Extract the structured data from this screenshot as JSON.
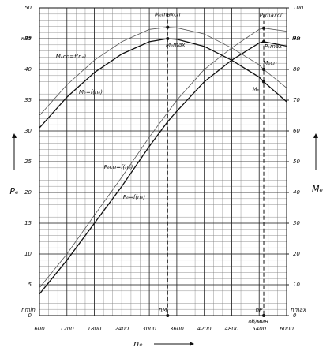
{
  "chart_data": {
    "type": "line",
    "x": [
      600,
      1200,
      1800,
      2400,
      3000,
      3400,
      3600,
      4200,
      4800,
      5400,
      5500,
      6000
    ],
    "xlim": [
      600,
      6000
    ],
    "xticks": [
      600,
      1200,
      1800,
      2400,
      3000,
      3600,
      4200,
      4800,
      5400,
      6000
    ],
    "ylim": [
      0,
      50
    ],
    "yticks": [
      0,
      5,
      10,
      15,
      20,
      25,
      30,
      35,
      40,
      45,
      50
    ],
    "y2lim": [
      0,
      100
    ],
    "y2ticks": [
      0,
      10,
      20,
      30,
      40,
      50,
      60,
      70,
      80,
      90,
      100
    ],
    "grid": true,
    "grid_minor": {
      "x": 200,
      "y": 1
    },
    "ylabel": "Pₑ",
    "y2label": "Mₑ",
    "xlabel": "nₑ",
    "yunit": "кВт",
    "y2unit": "Нм",
    "xunit": "об/мин",
    "x_end_labels": [
      "nmin",
      "nmax"
    ],
    "series": [
      {
        "name": "Pₑсп=f(nₑ)",
        "color": "#555",
        "width": 0.8,
        "values": [
          4.5,
          10,
          16.3,
          22.5,
          29,
          33,
          35,
          40,
          43.5,
          46.5,
          46.7,
          46.2
        ]
      },
      {
        "name": "Pₑ=f(nₑ)",
        "color": "#111",
        "width": 1.3,
        "values": [
          3.5,
          9,
          15,
          21,
          27.5,
          31.5,
          33.2,
          38,
          41.5,
          44.3,
          44.5,
          43.8
        ]
      },
      {
        "name": "Mₑсп=f(nₑ)",
        "color": "#555",
        "width": 0.8,
        "axis": "y2",
        "values": [
          65,
          75,
          83,
          89,
          93,
          93.7,
          93.5,
          91.5,
          87,
          81.5,
          80,
          74
        ]
      },
      {
        "name": "Mₑ=f(nₑ)",
        "color": "#111",
        "width": 1.3,
        "axis": "y2",
        "values": [
          61,
          71,
          79,
          85,
          89,
          90,
          89.8,
          87.5,
          83,
          77.5,
          76,
          69.5
        ]
      }
    ],
    "markers": [
      {
        "x": 3400,
        "label": "nM"
      },
      {
        "x": 5500,
        "label": "nP"
      }
    ],
    "points": [
      {
        "x": 3400,
        "y": 93.7,
        "axis": "y2",
        "label": "Mₑmaxсп"
      },
      {
        "x": 3400,
        "y": 90,
        "axis": "y2",
        "label": "Mₑmax"
      },
      {
        "x": 5500,
        "y": 46.7,
        "label": "Pₑmaxсп"
      },
      {
        "x": 5500,
        "y": 44.5,
        "label": "Pₑmax"
      },
      {
        "x": 5500,
        "y": 80,
        "axis": "y2",
        "label": "Mₚсп"
      },
      {
        "x": 5500,
        "y": 76,
        "axis": "y2",
        "label": "Mₚ"
      }
    ]
  }
}
